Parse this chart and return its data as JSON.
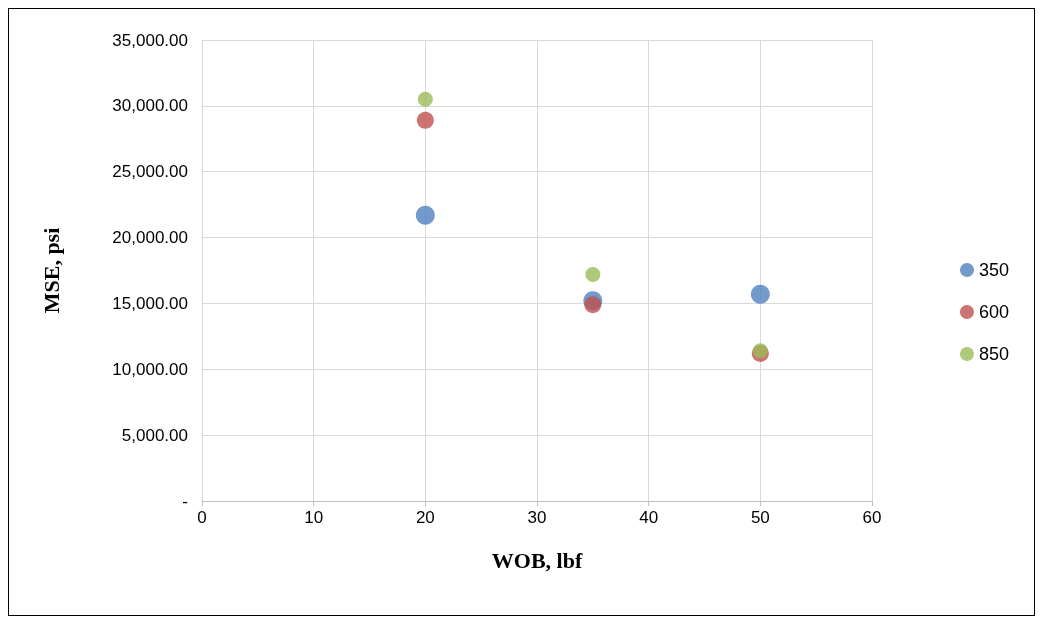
{
  "chart_data": {
    "type": "scatter",
    "xlabel": "WOB, lbf",
    "ylabel": "MSE, psi",
    "xlim": [
      0,
      60
    ],
    "xticks": [
      0,
      10,
      20,
      30,
      40,
      50,
      60
    ],
    "ylim": [
      0,
      35000
    ],
    "yticks": [
      {
        "value": 0,
        "label": "-"
      },
      {
        "value": 5000,
        "label": "5,000.00"
      },
      {
        "value": 10000,
        "label": "10,000.00"
      },
      {
        "value": 15000,
        "label": "15,000.00"
      },
      {
        "value": 20000,
        "label": "20,000.00"
      },
      {
        "value": 25000,
        "label": "25,000.00"
      },
      {
        "value": 30000,
        "label": "30,000.00"
      },
      {
        "value": 35000,
        "label": "35,000.00"
      }
    ],
    "grid": true,
    "legend": "right",
    "marker": "circle",
    "series": [
      {
        "name": "350",
        "color": "#4f81bd",
        "x": [
          20,
          35,
          50
        ],
        "values": [
          21700,
          15200,
          15700
        ]
      },
      {
        "name": "600",
        "color": "#c0504d",
        "x": [
          20,
          35,
          50
        ],
        "values": [
          28900,
          14900,
          11200
        ]
      },
      {
        "name": "850",
        "color": "#9bbb59",
        "x": [
          20,
          35,
          50
        ],
        "values": [
          30500,
          17200,
          11400
        ]
      }
    ]
  }
}
